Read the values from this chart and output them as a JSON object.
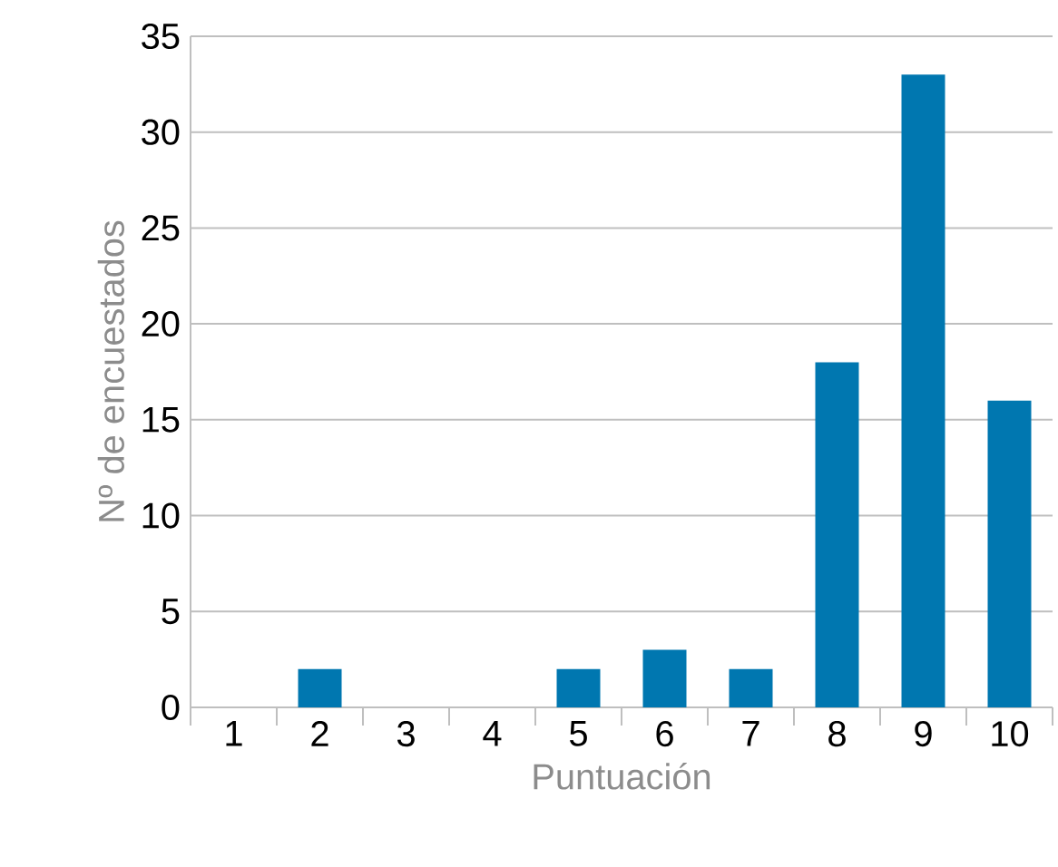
{
  "chart_data": {
    "type": "bar",
    "xlabel": "Puntuación",
    "ylabel": "Nº de encuestados",
    "categories": [
      "1",
      "2",
      "3",
      "4",
      "5",
      "6",
      "7",
      "8",
      "9",
      "10"
    ],
    "values": [
      0,
      2,
      0,
      0,
      2,
      3,
      2,
      18,
      33,
      16
    ],
    "color": "#0077b0",
    "ylim": [
      0,
      35
    ],
    "yticks": [
      0,
      5,
      10,
      15,
      20,
      25,
      30,
      35
    ],
    "grid": "y"
  }
}
